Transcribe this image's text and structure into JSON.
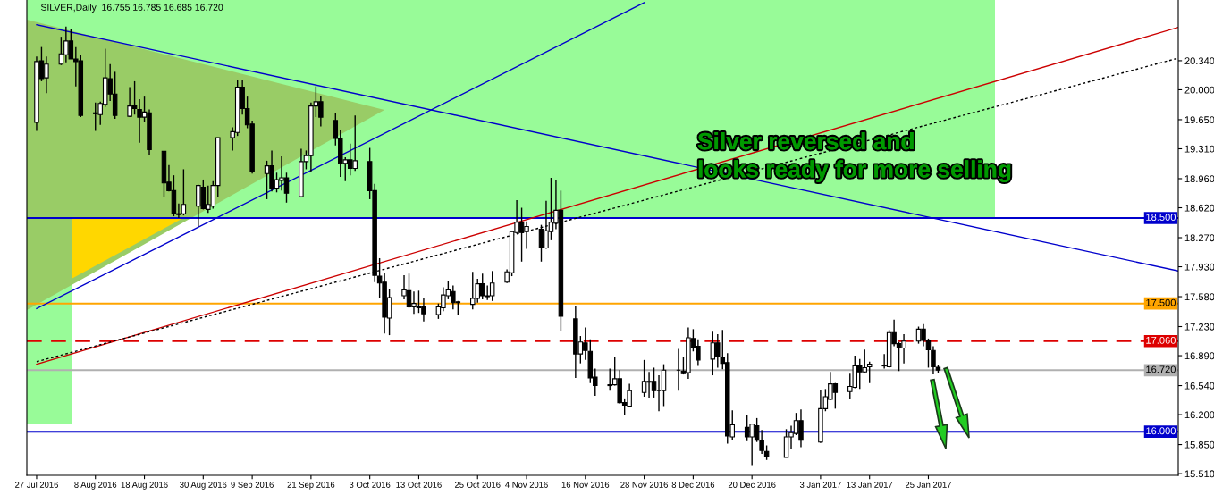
{
  "chart_data": {
    "type": "candlestick",
    "title": "SILVER,Daily  16.755 16.785 16.685 16.720",
    "annotations": [
      "Silver reversed and\nlooks ready for more selling"
    ],
    "color": "#000000",
    "x": [
      "2016-07-27",
      "2016-07-28",
      "2016-07-29",
      "2016-08-01",
      "2016-08-02",
      "2016-08-03",
      "2016-08-04",
      "2016-08-05",
      "2016-08-08",
      "2016-08-09",
      "2016-08-10",
      "2016-08-11",
      "2016-08-12",
      "2016-08-15",
      "2016-08-16",
      "2016-08-17",
      "2016-08-18",
      "2016-08-19",
      "2016-08-22",
      "2016-08-23",
      "2016-08-24",
      "2016-08-25",
      "2016-08-26",
      "2016-08-29",
      "2016-08-30",
      "2016-08-31",
      "2016-09-01",
      "2016-09-02",
      "2016-09-05",
      "2016-09-06",
      "2016-09-07",
      "2016-09-08",
      "2016-09-09",
      "2016-09-12",
      "2016-09-13",
      "2016-09-14",
      "2016-09-15",
      "2016-09-16",
      "2016-09-19",
      "2016-09-20",
      "2016-09-21",
      "2016-09-22",
      "2016-09-23",
      "2016-09-26",
      "2016-09-27",
      "2016-09-28",
      "2016-09-29",
      "2016-09-30",
      "2016-10-03",
      "2016-10-04",
      "2016-10-05",
      "2016-10-06",
      "2016-10-07",
      "2016-10-10",
      "2016-10-11",
      "2016-10-12",
      "2016-10-13",
      "2016-10-14",
      "2016-10-17",
      "2016-10-18",
      "2016-10-19",
      "2016-10-20",
      "2016-10-21",
      "2016-10-24",
      "2016-10-25",
      "2016-10-26",
      "2016-10-27",
      "2016-10-28",
      "2016-10-31",
      "2016-11-01",
      "2016-11-02",
      "2016-11-03",
      "2016-11-04",
      "2016-11-07",
      "2016-11-08",
      "2016-11-09",
      "2016-11-10",
      "2016-11-11",
      "2016-11-14",
      "2016-11-15",
      "2016-11-16",
      "2016-11-17",
      "2016-11-18",
      "2016-11-21",
      "2016-11-22",
      "2016-11-23",
      "2016-11-24",
      "2016-11-25",
      "2016-11-28",
      "2016-11-29",
      "2016-11-30",
      "2016-12-01",
      "2016-12-02",
      "2016-12-05",
      "2016-12-06",
      "2016-12-07",
      "2016-12-08",
      "2016-12-09",
      "2016-12-12",
      "2016-12-13",
      "2016-12-14",
      "2016-12-15",
      "2016-12-16",
      "2016-12-19",
      "2016-12-20",
      "2016-12-21",
      "2016-12-22",
      "2016-12-23",
      "2016-12-27",
      "2016-12-28",
      "2016-12-29",
      "2016-12-30",
      "2017-01-03",
      "2017-01-04",
      "2017-01-05",
      "2017-01-06",
      "2017-01-09",
      "2017-01-10",
      "2017-01-11",
      "2017-01-12",
      "2017-01-13",
      "2017-01-16",
      "2017-01-17",
      "2017-01-18",
      "2017-01-19",
      "2017-01-20",
      "2017-01-23",
      "2017-01-24",
      "2017-01-25",
      "2017-01-26",
      "2017-01-27"
    ],
    "ohlc": [
      [
        19.62,
        20.39,
        19.52,
        20.33
      ],
      [
        20.34,
        20.5,
        20.1,
        20.13
      ],
      [
        20.14,
        20.39,
        19.96,
        20.3
      ],
      [
        20.3,
        20.62,
        20.29,
        20.42
      ],
      [
        20.41,
        20.74,
        20.32,
        20.57
      ],
      [
        20.57,
        20.71,
        20.36,
        20.36
      ],
      [
        20.36,
        20.5,
        20.04,
        20.33
      ],
      [
        20.34,
        20.41,
        19.68,
        19.7
      ],
      [
        19.73,
        19.85,
        19.52,
        19.72
      ],
      [
        19.71,
        19.86,
        19.59,
        19.84
      ],
      [
        19.83,
        20.48,
        19.8,
        20.14
      ],
      [
        20.13,
        20.3,
        19.87,
        19.95
      ],
      [
        19.95,
        20.21,
        19.66,
        19.7
      ],
      [
        19.69,
        20.03,
        19.68,
        19.81
      ],
      [
        19.81,
        20.1,
        19.71,
        19.78
      ],
      [
        19.77,
        19.89,
        19.38,
        19.68
      ],
      [
        19.68,
        19.92,
        19.62,
        19.74
      ],
      [
        19.73,
        19.77,
        19.24,
        19.3
      ],
      [
        19.28,
        19.28,
        18.74,
        18.91
      ],
      [
        18.92,
        19.12,
        18.81,
        18.82
      ],
      [
        18.82,
        19.0,
        18.52,
        18.55
      ],
      [
        18.55,
        18.67,
        18.5,
        18.54
      ],
      [
        18.55,
        19.07,
        18.53,
        18.66
      ],
      [
        18.64,
        18.89,
        18.4,
        18.88
      ],
      [
        18.86,
        18.95,
        18.6,
        18.61
      ],
      [
        18.6,
        18.88,
        18.56,
        18.66
      ],
      [
        18.64,
        18.93,
        18.61,
        18.88
      ],
      [
        18.88,
        19.44,
        18.75,
        19.44
      ],
      [
        19.44,
        19.56,
        19.29,
        19.51
      ],
      [
        19.5,
        20.11,
        19.46,
        20.03
      ],
      [
        20.03,
        20.12,
        19.71,
        19.78
      ],
      [
        19.78,
        19.92,
        19.55,
        19.59
      ],
      [
        19.6,
        19.64,
        19.02,
        19.05
      ],
      [
        19.02,
        19.17,
        18.72,
        19.11
      ],
      [
        19.11,
        19.29,
        18.81,
        18.85
      ],
      [
        18.85,
        19.03,
        18.8,
        18.95
      ],
      [
        18.94,
        19.22,
        18.82,
        18.97
      ],
      [
        18.97,
        19.03,
        18.68,
        18.79
      ],
      [
        18.75,
        19.31,
        18.75,
        19.16
      ],
      [
        19.16,
        19.29,
        19.07,
        19.23
      ],
      [
        19.23,
        19.85,
        19.04,
        19.81
      ],
      [
        19.81,
        20.04,
        19.68,
        19.86
      ],
      [
        19.86,
        19.92,
        19.57,
        19.68
      ],
      [
        19.64,
        19.73,
        19.35,
        19.43
      ],
      [
        19.43,
        19.53,
        18.98,
        19.14
      ],
      [
        19.14,
        19.21,
        18.93,
        19.18
      ],
      [
        19.18,
        19.37,
        19.0,
        19.08
      ],
      [
        19.08,
        19.7,
        19.05,
        19.17
      ],
      [
        19.16,
        19.32,
        18.72,
        18.82
      ],
      [
        18.82,
        18.9,
        17.75,
        17.83
      ],
      [
        17.82,
        18.03,
        17.57,
        17.74
      ],
      [
        17.75,
        17.86,
        17.15,
        17.34
      ],
      [
        17.33,
        17.67,
        17.13,
        17.57
      ],
      [
        17.59,
        17.83,
        17.55,
        17.66
      ],
      [
        17.65,
        17.85,
        17.45,
        17.46
      ],
      [
        17.46,
        17.64,
        17.38,
        17.5
      ],
      [
        17.45,
        17.65,
        17.39,
        17.46
      ],
      [
        17.46,
        17.56,
        17.29,
        17.38
      ],
      [
        17.37,
        17.5,
        17.32,
        17.46
      ],
      [
        17.45,
        17.69,
        17.41,
        17.6
      ],
      [
        17.59,
        17.76,
        17.55,
        17.66
      ],
      [
        17.64,
        17.71,
        17.43,
        17.51
      ],
      [
        17.51,
        17.53,
        17.37,
        17.52
      ],
      [
        17.49,
        17.87,
        17.43,
        17.56
      ],
      [
        17.56,
        17.79,
        17.51,
        17.73
      ],
      [
        17.73,
        17.85,
        17.55,
        17.59
      ],
      [
        17.58,
        17.71,
        17.54,
        17.59
      ],
      [
        17.59,
        17.88,
        17.53,
        17.74
      ],
      [
        17.75,
        17.9,
        17.74,
        17.87
      ],
      [
        17.86,
        18.34,
        17.82,
        18.34
      ],
      [
        18.33,
        18.71,
        18.32,
        18.45
      ],
      [
        18.45,
        18.62,
        17.99,
        18.33
      ],
      [
        18.34,
        18.46,
        18.14,
        18.4
      ],
      [
        18.37,
        18.42,
        17.99,
        18.15
      ],
      [
        18.15,
        18.7,
        18.14,
        18.35
      ],
      [
        18.34,
        18.97,
        18.24,
        18.45
      ],
      [
        18.44,
        18.95,
        18.37,
        18.59
      ],
      [
        18.59,
        18.82,
        17.18,
        17.35
      ],
      [
        17.32,
        17.47,
        16.63,
        16.91
      ],
      [
        16.91,
        17.12,
        16.8,
        17.05
      ],
      [
        17.04,
        17.22,
        16.84,
        16.95
      ],
      [
        16.94,
        17.08,
        16.57,
        16.63
      ],
      [
        16.64,
        16.74,
        16.42,
        16.54
      ],
      [
        16.55,
        16.74,
        16.48,
        16.54
      ],
      [
        16.55,
        16.88,
        16.54,
        16.62
      ],
      [
        16.62,
        16.72,
        16.33,
        16.34
      ],
      [
        16.34,
        16.39,
        16.2,
        16.31
      ],
      [
        16.3,
        16.56,
        16.3,
        16.48
      ],
      [
        16.46,
        16.84,
        16.41,
        16.59
      ],
      [
        16.58,
        16.7,
        16.4,
        16.59
      ],
      [
        16.59,
        16.75,
        16.4,
        16.48
      ],
      [
        16.48,
        16.66,
        16.24,
        16.48
      ],
      [
        16.48,
        16.79,
        16.3,
        16.72
      ],
      [
        16.72,
        16.97,
        16.48,
        16.72
      ],
      [
        16.71,
        16.87,
        16.67,
        16.68
      ],
      [
        16.69,
        17.22,
        16.62,
        17.1
      ],
      [
        17.09,
        17.2,
        16.94,
        16.99
      ],
      [
        17.0,
        17.08,
        16.77,
        16.84
      ],
      [
        16.85,
        17.17,
        16.66,
        17.04
      ],
      [
        17.04,
        17.14,
        16.75,
        16.88
      ],
      [
        16.87,
        17.19,
        16.73,
        16.8
      ],
      [
        16.81,
        16.92,
        15.86,
        15.95
      ],
      [
        15.94,
        16.25,
        15.9,
        16.08
      ],
      [
        16.05,
        16.19,
        15.89,
        15.94
      ],
      [
        15.94,
        16.09,
        15.61,
        16.09
      ],
      [
        16.07,
        16.16,
        15.88,
        15.9
      ],
      [
        15.9,
        16.02,
        15.74,
        15.78
      ],
      [
        15.77,
        15.84,
        15.67,
        15.71
      ],
      [
        15.7,
        16.03,
        15.7,
        15.94
      ],
      [
        15.94,
        16.07,
        15.8,
        15.99
      ],
      [
        15.98,
        16.22,
        15.96,
        16.13
      ],
      [
        16.13,
        16.26,
        15.82,
        15.9
      ],
      [
        15.88,
        16.49,
        15.87,
        16.27
      ],
      [
        16.27,
        16.5,
        16.24,
        16.41
      ],
      [
        16.38,
        16.7,
        16.37,
        16.56
      ],
      [
        16.56,
        16.57,
        16.27,
        16.46
      ],
      [
        16.47,
        16.68,
        16.39,
        16.53
      ],
      [
        16.52,
        16.89,
        16.51,
        16.77
      ],
      [
        16.77,
        16.85,
        16.5,
        16.7
      ],
      [
        16.7,
        16.96,
        16.69,
        16.75
      ],
      [
        16.76,
        16.82,
        16.57,
        16.79
      ],
      [
        16.77,
        16.91,
        16.74,
        16.78
      ],
      [
        16.76,
        17.19,
        16.75,
        17.16
      ],
      [
        17.16,
        17.31,
        17.0,
        17.03
      ],
      [
        17.03,
        17.05,
        16.71,
        16.98
      ],
      [
        16.98,
        17.14,
        16.8,
        17.06
      ],
      [
        17.06,
        17.23,
        17.03,
        17.2
      ],
      [
        17.2,
        17.26,
        17.0,
        17.07
      ],
      [
        17.07,
        17.09,
        16.75,
        16.96
      ],
      [
        16.95,
        17.0,
        16.67,
        16.76
      ],
      [
        16.755,
        16.785,
        16.685,
        16.72
      ]
    ],
    "series": [
      {
        "type": "line",
        "x": [
          "2016-07-27",
          "2017-03-17"
        ],
        "values": [
          20.76,
          17.88
        ],
        "color": "#0000cc",
        "line_style": "solid"
      },
      {
        "type": "line",
        "x": [
          "2016-07-27",
          "2016-11-28"
        ],
        "values": [
          17.44,
          21.02
        ],
        "color": "#0000cc",
        "line_style": "solid"
      },
      {
        "type": "line",
        "x": [
          "2016-07-27",
          "2017-03-17"
        ],
        "values": [
          16.79,
          20.73
        ],
        "color": "#cc0000",
        "line_style": "solid"
      },
      {
        "type": "line",
        "x": [
          "2016-07-27",
          "2017-03-17"
        ],
        "values": [
          16.82,
          20.37
        ],
        "color": "#000000",
        "line_style": "dotted"
      }
    ],
    "ref_lines": [
      {
        "axis": "y",
        "value": 18.5,
        "label": "18.500",
        "color": "#0000cc",
        "line_style": "solid"
      },
      {
        "axis": "y",
        "value": 17.5,
        "label": "17.500",
        "color": "#ffa500",
        "line_style": "solid"
      },
      {
        "axis": "y",
        "value": 17.06,
        "label": "17.060",
        "color": "#dd0000",
        "line_style": "dashed"
      },
      {
        "axis": "y",
        "value": 16.72,
        "label": "16.720",
        "color": "#b0b0b0",
        "line_style": "solid"
      },
      {
        "axis": "y",
        "value": 16.0,
        "label": "16.000",
        "color": "#0000cc",
        "line_style": "solid"
      }
    ],
    "xlim": [
      "2016-07-25",
      "2017-03-17"
    ],
    "xticks": [
      {
        "value": "2016-07-27",
        "label": "27 Jul 2016"
      },
      {
        "value": "2016-08-08",
        "label": "8 Aug 2016"
      },
      {
        "value": "2016-08-18",
        "label": "18 Aug 2016"
      },
      {
        "value": "2016-08-30",
        "label": "30 Aug 2016"
      },
      {
        "value": "2016-09-09",
        "label": "9 Sep 2016"
      },
      {
        "value": "2016-09-21",
        "label": "21 Sep 2016"
      },
      {
        "value": "2016-10-03",
        "label": "3 Oct 2016"
      },
      {
        "value": "2016-10-13",
        "label": "13 Oct 2016"
      },
      {
        "value": "2016-10-25",
        "label": "25 Oct 2016"
      },
      {
        "value": "2016-11-04",
        "label": "4 Nov 2016"
      },
      {
        "value": "2016-11-16",
        "label": "16 Nov 2016"
      },
      {
        "value": "2016-11-28",
        "label": "28 Nov 2016"
      },
      {
        "value": "2016-12-08",
        "label": "8 Dec 2016"
      },
      {
        "value": "2016-12-20",
        "label": "20 Dec 2016"
      },
      {
        "value": "2017-01-03",
        "label": "3 Jan 2017"
      },
      {
        "value": "2017-01-13",
        "label": "13 Jan 2017"
      },
      {
        "value": "2017-01-25",
        "label": "25 Jan 2017"
      }
    ],
    "ylim": [
      15.49,
      21.05
    ],
    "yticks": [
      {
        "value": 20.34,
        "label": "20.340"
      },
      {
        "value": 20.0,
        "label": "20.000"
      },
      {
        "value": 19.65,
        "label": "19.650"
      },
      {
        "value": 19.31,
        "label": "19.310"
      },
      {
        "value": 18.96,
        "label": "18.960"
      },
      {
        "value": 18.62,
        "label": "18.620"
      },
      {
        "value": 18.27,
        "label": "18.270"
      },
      {
        "value": 17.93,
        "label": "17.930"
      },
      {
        "value": 17.58,
        "label": "17.580"
      },
      {
        "value": 17.23,
        "label": "17.230"
      },
      {
        "value": 16.89,
        "label": "16.890"
      },
      {
        "value": 16.54,
        "label": "16.540"
      },
      {
        "value": 16.2,
        "label": "16.200"
      },
      {
        "value": 15.85,
        "label": "15.850"
      },
      {
        "value": 15.51,
        "label": "15.510"
      }
    ]
  }
}
